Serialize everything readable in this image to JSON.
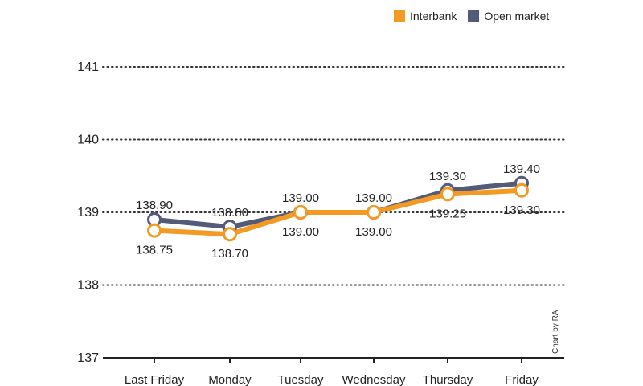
{
  "colors": {
    "interbank": "#f39a25",
    "open_market": "#535b78",
    "axis": "#222222",
    "grid": "#333333"
  },
  "legend": {
    "position": "top-right",
    "items": [
      "Interbank",
      "Open market"
    ]
  },
  "credit": "Chart by RA",
  "chart_data": {
    "type": "line",
    "title": "",
    "xlabel": "",
    "ylabel": "",
    "categories": [
      "Last Friday",
      "Monday",
      "Tuesday",
      "Wednesday",
      "Thursday",
      "Friday"
    ],
    "ylim": [
      137,
      141
    ],
    "yticks": [
      "137",
      "138",
      "139",
      "140",
      "141"
    ],
    "grid": "dotted horizontal",
    "series": [
      {
        "name": "Interbank",
        "values": [
          138.75,
          138.7,
          139.0,
          139.0,
          139.25,
          139.3
        ],
        "labels": [
          "138.75",
          "138.70",
          "139.00",
          "139.00",
          "139.25",
          "139.30"
        ]
      },
      {
        "name": "Open market",
        "values": [
          138.9,
          138.8,
          139.0,
          139.0,
          139.3,
          139.4
        ],
        "labels": [
          "138.90",
          "138.80",
          "139.00",
          "139.00",
          "139.30",
          "139.40"
        ]
      }
    ]
  }
}
